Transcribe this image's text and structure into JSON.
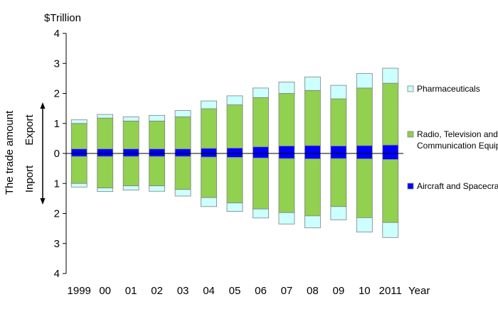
{
  "chart_data": {
    "type": "bar",
    "title": "",
    "unit_label": "$Trillion",
    "xlabel": "Year",
    "ylabel": "The trade amount",
    "export_label": "Export",
    "import_label": "Inport",
    "ylim": [
      -4,
      4
    ],
    "y_ticks": [
      {
        "value": 4,
        "label": "4"
      },
      {
        "value": 3,
        "label": "3"
      },
      {
        "value": 2,
        "label": "2"
      },
      {
        "value": 1,
        "label": "1"
      },
      {
        "value": 0,
        "label": "0"
      },
      {
        "value": -1,
        "label": "1"
      },
      {
        "value": -2,
        "label": "2"
      },
      {
        "value": -3,
        "label": "3"
      },
      {
        "value": -4,
        "label": "4"
      }
    ],
    "categories": [
      "1999",
      "00",
      "01",
      "02",
      "03",
      "04",
      "05",
      "06",
      "07",
      "08",
      "09",
      "10",
      "2011"
    ],
    "legend_position": "right",
    "stacked": true,
    "series": [
      {
        "name": "Aircraft and Spacecraft",
        "color": "#0000ff",
        "export": [
          0.15,
          0.15,
          0.15,
          0.15,
          0.15,
          0.17,
          0.18,
          0.22,
          0.25,
          0.26,
          0.25,
          0.26,
          0.28
        ],
        "import": [
          0.1,
          0.1,
          0.1,
          0.1,
          0.1,
          0.12,
          0.13,
          0.15,
          0.17,
          0.18,
          0.17,
          0.18,
          0.2
        ]
      },
      {
        "name": "Radio, Television and Communication Equipment",
        "color": "#92d050",
        "export": [
          0.85,
          1.03,
          0.93,
          0.93,
          1.07,
          1.32,
          1.44,
          1.64,
          1.75,
          1.84,
          1.57,
          1.92,
          2.06
        ],
        "import": [
          0.9,
          1.05,
          0.98,
          0.98,
          1.1,
          1.35,
          1.52,
          1.7,
          1.8,
          1.9,
          1.6,
          1.96,
          2.1
        ]
      },
      {
        "name": "Pharmaceuticals",
        "color": "#ccffff",
        "export": [
          0.12,
          0.12,
          0.14,
          0.19,
          0.21,
          0.26,
          0.3,
          0.32,
          0.38,
          0.45,
          0.45,
          0.48,
          0.5
        ],
        "import": [
          0.12,
          0.12,
          0.14,
          0.18,
          0.22,
          0.3,
          0.28,
          0.3,
          0.38,
          0.4,
          0.44,
          0.48,
          0.5
        ]
      }
    ]
  }
}
